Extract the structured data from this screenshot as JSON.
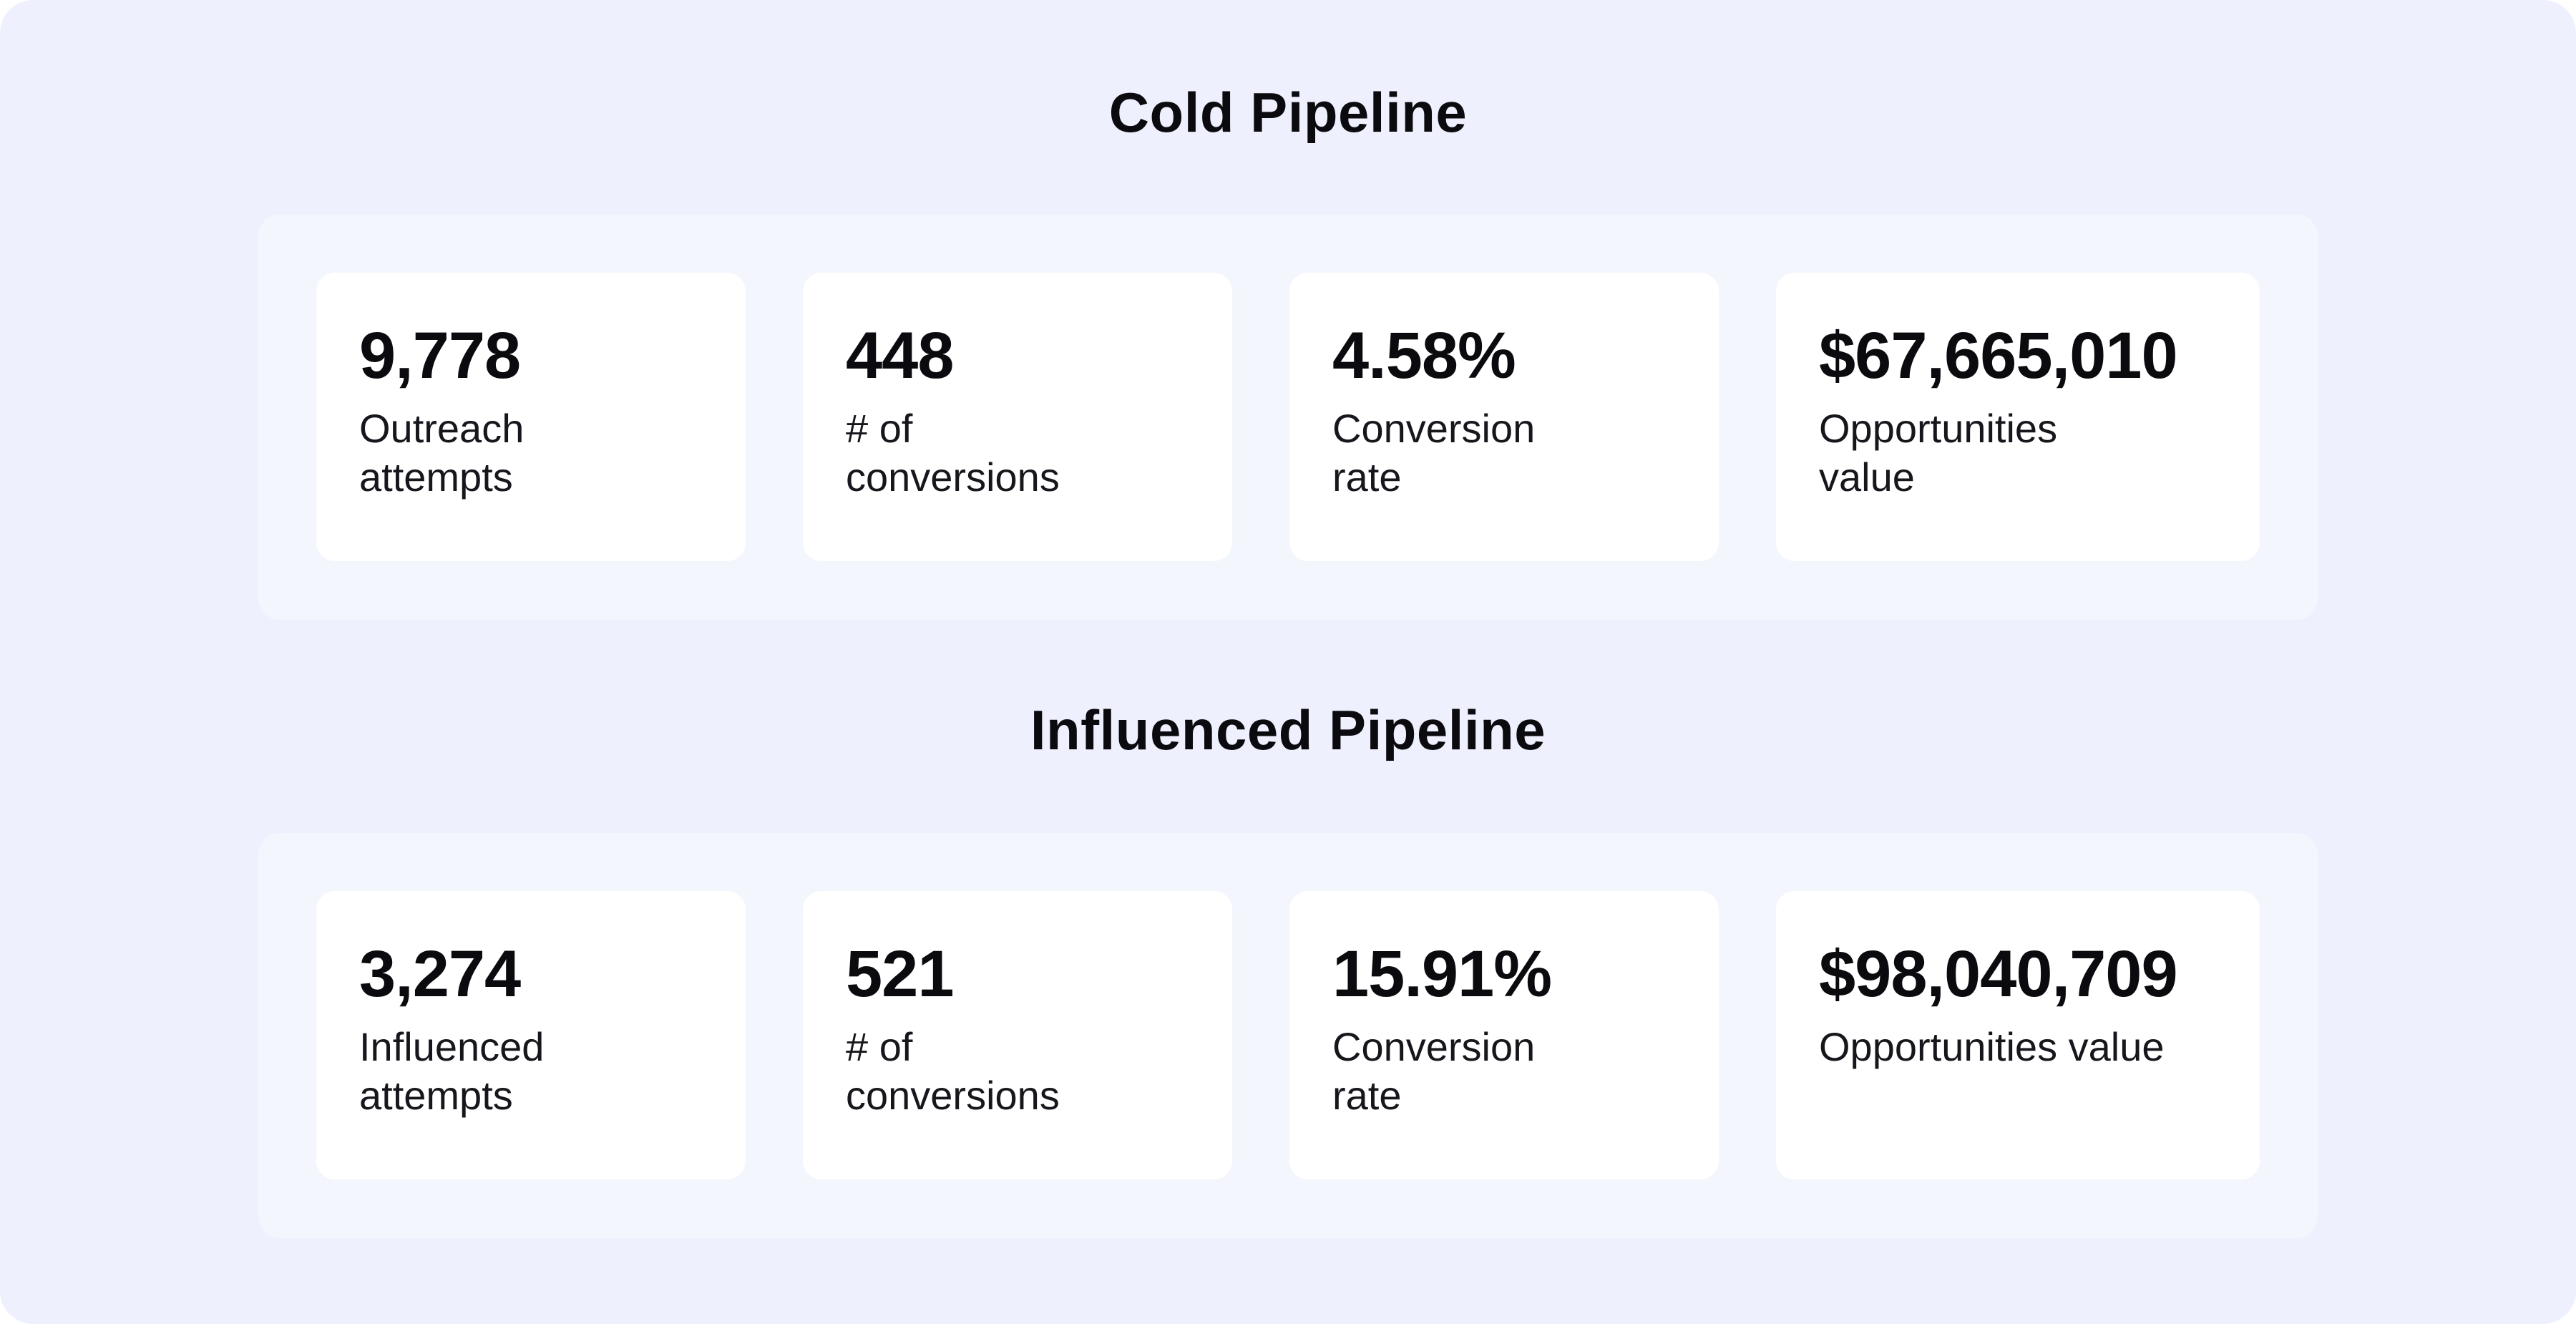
{
  "sections": [
    {
      "title": "Cold Pipeline",
      "metrics": [
        {
          "value": "9,778",
          "label": "Outreach\nattempts"
        },
        {
          "value": "448",
          "label": "# of\nconversions"
        },
        {
          "value": "4.58%",
          "label": "Conversion\nrate"
        },
        {
          "value": "$67,665,010",
          "label": "Opportunities\nvalue"
        }
      ]
    },
    {
      "title": "Influenced Pipeline",
      "metrics": [
        {
          "value": "3,274",
          "label": "Influenced\nattempts"
        },
        {
          "value": "521",
          "label": "# of\nconversions"
        },
        {
          "value": "15.91%",
          "label": "Conversion\nrate"
        },
        {
          "value": "$98,040,709",
          "label": "Opportunities value"
        }
      ]
    }
  ]
}
